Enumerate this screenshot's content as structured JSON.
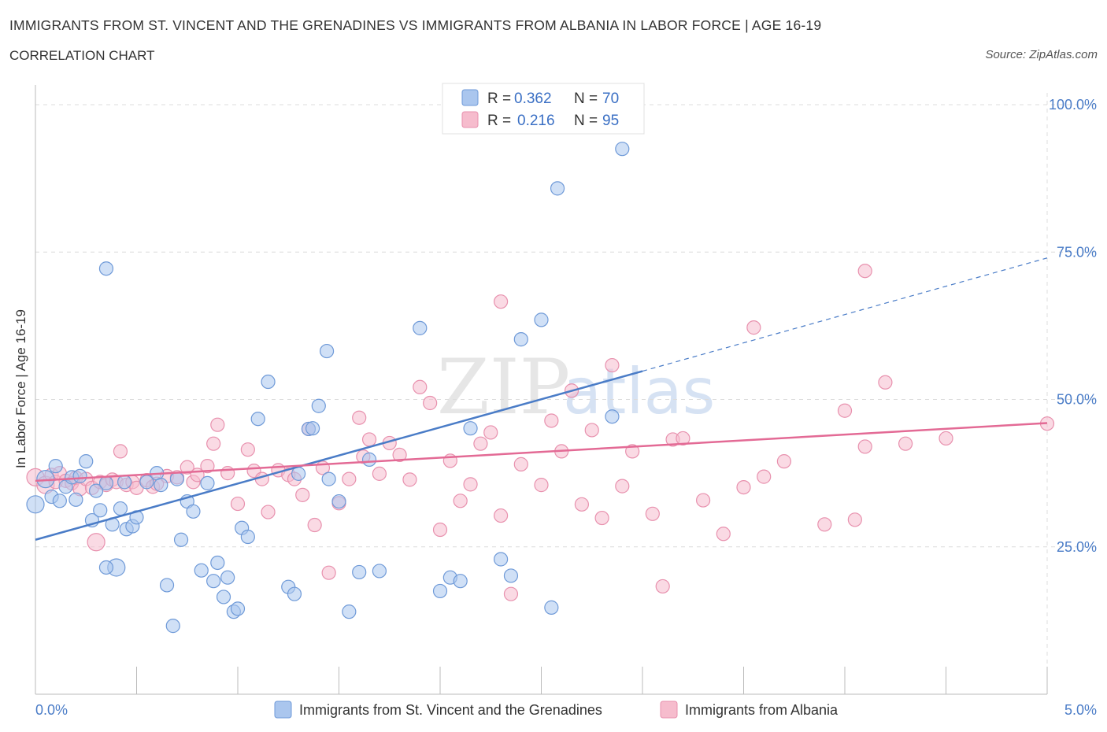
{
  "header": {
    "title": "IMMIGRANTS FROM ST. VINCENT AND THE GRENADINES VS IMMIGRANTS FROM ALBANIA IN LABOR FORCE | AGE 16-19",
    "subtitle": "CORRELATION CHART",
    "source": "Source: ZipAtlas.com"
  },
  "watermark": {
    "zip": "ZIP",
    "atlas": "atlas"
  },
  "colors": {
    "blue": "#4a7cc7",
    "blue_fill": "#aac6ee",
    "pink": "#e36a95",
    "pink_fill": "#f6bccd",
    "grid": "#dcdcdc"
  },
  "chart_data": {
    "type": "scatter",
    "title": "IMMIGRANTS FROM ST. VINCENT AND THE GRENADINES VS IMMIGRANTS FROM ALBANIA IN LABOR FORCE | AGE 16-19",
    "xlabel": "",
    "ylabel": "In Labor Force | Age 16-19",
    "xlim": [
      0,
      5
    ],
    "ylim": [
      0,
      100
    ],
    "x_tick_labels": [
      "0.0%",
      "5.0%"
    ],
    "y_ticks": [
      25,
      50,
      75,
      100
    ],
    "y_tick_labels": [
      "25.0%",
      "50.0%",
      "75.0%",
      "100.0%"
    ],
    "legend": [
      {
        "r_label": "R =",
        "r_value": "0.362",
        "n_label": "N =",
        "n_value": "70"
      },
      {
        "r_label": "R =",
        "r_value": "0.216",
        "n_label": "N =",
        "n_value": "95"
      }
    ],
    "series": [
      {
        "name": "Immigrants from St. Vincent and the Grenadines",
        "color": "#4a7cc7",
        "trend": {
          "x0": 0,
          "y0": 26.2,
          "x1": 3.0,
          "y1": 54.8,
          "dash_x1": 5.0,
          "dash_y1": 74
        },
        "points": [
          [
            0.0,
            32.2
          ],
          [
            0.05,
            36.5
          ],
          [
            0.08,
            33.5
          ],
          [
            0.1,
            38.7
          ],
          [
            0.12,
            32.8
          ],
          [
            0.15,
            35.2
          ],
          [
            0.18,
            36.8
          ],
          [
            0.2,
            33.0
          ],
          [
            0.25,
            39.5
          ],
          [
            0.28,
            29.5
          ],
          [
            0.3,
            34.5
          ],
          [
            0.32,
            31.2
          ],
          [
            0.35,
            35.8
          ],
          [
            0.38,
            28.8
          ],
          [
            0.4,
            21.5
          ],
          [
            0.42,
            31.5
          ],
          [
            0.45,
            28.0
          ],
          [
            0.48,
            28.5
          ],
          [
            0.5,
            30.0
          ],
          [
            0.55,
            36.0
          ],
          [
            0.6,
            37.5
          ],
          [
            0.62,
            35.5
          ],
          [
            0.65,
            18.5
          ],
          [
            0.7,
            36.5
          ],
          [
            0.72,
            26.2
          ],
          [
            0.75,
            32.7
          ],
          [
            0.78,
            31.0
          ],
          [
            0.82,
            21.0
          ],
          [
            0.85,
            35.8
          ],
          [
            0.88,
            19.2
          ],
          [
            0.9,
            22.3
          ],
          [
            0.93,
            16.5
          ],
          [
            0.95,
            19.8
          ],
          [
            0.98,
            14.0
          ],
          [
            1.0,
            14.5
          ],
          [
            1.02,
            28.2
          ],
          [
            1.05,
            26.7
          ],
          [
            1.1,
            46.7
          ],
          [
            1.15,
            53.0
          ],
          [
            0.35,
            21.5
          ],
          [
            0.68,
            11.6
          ],
          [
            1.25,
            18.2
          ],
          [
            1.28,
            17.0
          ],
          [
            1.3,
            37.4
          ],
          [
            1.35,
            45.0
          ],
          [
            1.4,
            48.9
          ],
          [
            1.45,
            36.5
          ],
          [
            1.5,
            32.7
          ],
          [
            1.6,
            20.7
          ],
          [
            1.65,
            39.8
          ],
          [
            1.7,
            20.9
          ],
          [
            1.9,
            62.1
          ],
          [
            2.0,
            17.5
          ],
          [
            2.05,
            19.8
          ],
          [
            2.1,
            19.2
          ],
          [
            2.15,
            45.1
          ],
          [
            2.3,
            22.9
          ],
          [
            2.35,
            20.1
          ],
          [
            2.5,
            63.5
          ],
          [
            2.55,
            14.7
          ],
          [
            1.55,
            14.0
          ],
          [
            1.44,
            58.2
          ],
          [
            1.37,
            45.1
          ],
          [
            2.4,
            60.2
          ],
          [
            0.44,
            36.0
          ],
          [
            0.22,
            37.0
          ],
          [
            2.58,
            85.8
          ],
          [
            2.85,
            47.1
          ],
          [
            2.9,
            92.5
          ],
          [
            0.35,
            72.2
          ]
        ]
      },
      {
        "name": "Immigrants from Albania",
        "color": "#e36a95",
        "trend": {
          "x0": 0,
          "y0": 36.2,
          "x1": 5.0,
          "y1": 46.0
        },
        "points": [
          [
            0.0,
            36.8
          ],
          [
            0.05,
            35.5
          ],
          [
            0.08,
            37.2
          ],
          [
            0.1,
            36.0
          ],
          [
            0.12,
            37.5
          ],
          [
            0.15,
            36.2
          ],
          [
            0.18,
            35.8
          ],
          [
            0.2,
            36.7
          ],
          [
            0.22,
            34.8
          ],
          [
            0.25,
            36.5
          ],
          [
            0.28,
            35.0
          ],
          [
            0.3,
            25.8
          ],
          [
            0.32,
            36.0
          ],
          [
            0.35,
            35.5
          ],
          [
            0.38,
            36.4
          ],
          [
            0.4,
            36.0
          ],
          [
            0.42,
            41.2
          ],
          [
            0.45,
            35.5
          ],
          [
            0.48,
            36.0
          ],
          [
            0.5,
            35.0
          ],
          [
            0.55,
            36.3
          ],
          [
            0.58,
            35.2
          ],
          [
            0.6,
            35.7
          ],
          [
            0.65,
            37.0
          ],
          [
            0.7,
            36.8
          ],
          [
            0.75,
            38.5
          ],
          [
            0.78,
            36.0
          ],
          [
            0.8,
            37.2
          ],
          [
            0.85,
            38.7
          ],
          [
            0.88,
            42.5
          ],
          [
            0.9,
            45.7
          ],
          [
            0.95,
            37.5
          ],
          [
            1.0,
            32.3
          ],
          [
            1.05,
            41.5
          ],
          [
            1.08,
            37.9
          ],
          [
            1.12,
            36.5
          ],
          [
            1.15,
            30.9
          ],
          [
            1.2,
            38.0
          ],
          [
            1.25,
            37.2
          ],
          [
            1.28,
            36.5
          ],
          [
            1.32,
            33.8
          ],
          [
            1.35,
            45.0
          ],
          [
            1.38,
            28.7
          ],
          [
            1.42,
            38.4
          ],
          [
            1.45,
            20.6
          ],
          [
            1.5,
            32.4
          ],
          [
            1.55,
            36.5
          ],
          [
            1.6,
            46.9
          ],
          [
            1.62,
            40.3
          ],
          [
            1.65,
            43.2
          ],
          [
            1.7,
            37.4
          ],
          [
            1.75,
            42.6
          ],
          [
            1.8,
            40.6
          ],
          [
            1.85,
            36.4
          ],
          [
            1.9,
            52.1
          ],
          [
            1.95,
            49.4
          ],
          [
            2.0,
            27.9
          ],
          [
            2.05,
            39.6
          ],
          [
            2.1,
            32.8
          ],
          [
            2.15,
            35.6
          ],
          [
            2.2,
            42.5
          ],
          [
            2.25,
            44.4
          ],
          [
            2.3,
            30.3
          ],
          [
            2.35,
            17.0
          ],
          [
            2.4,
            39.0
          ],
          [
            2.5,
            35.5
          ],
          [
            2.55,
            46.4
          ],
          [
            2.6,
            41.2
          ],
          [
            2.65,
            51.5
          ],
          [
            2.7,
            32.2
          ],
          [
            2.75,
            44.8
          ],
          [
            2.8,
            29.9
          ],
          [
            2.85,
            55.8
          ],
          [
            2.9,
            35.3
          ],
          [
            2.95,
            41.2
          ],
          [
            3.05,
            30.6
          ],
          [
            3.1,
            18.3
          ],
          [
            3.15,
            43.2
          ],
          [
            3.2,
            43.4
          ],
          [
            3.3,
            32.9
          ],
          [
            3.4,
            27.2
          ],
          [
            3.5,
            35.1
          ],
          [
            3.6,
            36.9
          ],
          [
            3.7,
            39.5
          ],
          [
            3.9,
            28.8
          ],
          [
            4.0,
            48.1
          ],
          [
            4.05,
            29.6
          ],
          [
            4.1,
            42.0
          ],
          [
            4.3,
            42.5
          ],
          [
            2.3,
            66.6
          ],
          [
            3.55,
            62.2
          ],
          [
            4.1,
            71.8
          ],
          [
            4.2,
            52.9
          ],
          [
            4.5,
            43.4
          ],
          [
            5.0,
            45.9
          ]
        ]
      }
    ]
  },
  "bottom_legend": {
    "series1": "Immigrants from St. Vincent and the Grenadines",
    "series2": "Immigrants from Albania"
  }
}
